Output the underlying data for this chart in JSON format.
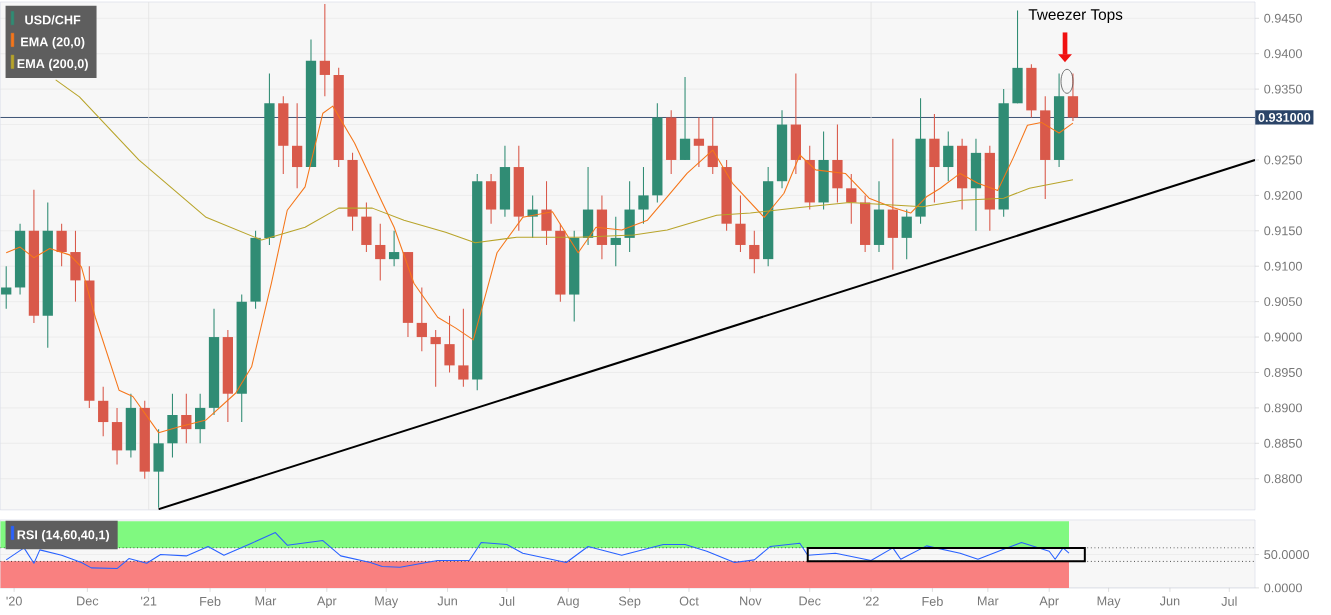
{
  "chart_data": [
    {
      "type": "candlestick",
      "xlim": [
        "2020-10-18",
        "2022-07-14"
      ],
      "ylim": [
        0.8756,
        0.9473
      ],
      "tick_labels": "y",
      "grid": "y",
      "legend": "top left",
      "yticks": [
        {
          "value": 0.88,
          "label": "0.8800"
        },
        {
          "value": 0.885,
          "label": "0.8850"
        },
        {
          "value": 0.89,
          "label": "0.8900"
        },
        {
          "value": 0.895,
          "label": "0.8950"
        },
        {
          "value": 0.9,
          "label": "0.9000"
        },
        {
          "value": 0.905,
          "label": "0.9050"
        },
        {
          "value": 0.91,
          "label": "0.9100"
        },
        {
          "value": 0.915,
          "label": "0.9150"
        },
        {
          "value": 0.92,
          "label": "0.9200"
        },
        {
          "value": 0.925,
          "label": "0.9250"
        },
        {
          "value": 0.93,
          "label": null
        },
        {
          "value": 0.935,
          "label": "0.9350"
        },
        {
          "value": 0.94,
          "label": "0.9400"
        },
        {
          "value": 0.945,
          "label": "0.9450"
        }
      ],
      "series": [
        {
          "name": "USD/CHF",
          "type": "candlestick",
          "color": "#308c74",
          "x": [
            "2020-10-21",
            "2020-10-28",
            "2020-11-04",
            "2020-11-11",
            "2020-11-18",
            "2020-11-25",
            "2020-12-02",
            "2020-12-09",
            "2020-12-16",
            "2020-12-23",
            "2020-12-30",
            "2021-01-06",
            "2021-01-13",
            "2021-01-20",
            "2021-01-27",
            "2021-02-03",
            "2021-02-10",
            "2021-02-17",
            "2021-02-24",
            "2021-03-03",
            "2021-03-10",
            "2021-03-17",
            "2021-03-24",
            "2021-03-31",
            "2021-04-07",
            "2021-04-14",
            "2021-04-21",
            "2021-04-28",
            "2021-05-05",
            "2021-05-12",
            "2021-05-19",
            "2021-05-26",
            "2021-06-02",
            "2021-06-09",
            "2021-06-16",
            "2021-06-23",
            "2021-06-30",
            "2021-07-07",
            "2021-07-14",
            "2021-07-21",
            "2021-07-28",
            "2021-08-04",
            "2021-08-11",
            "2021-08-18",
            "2021-08-25",
            "2021-09-01",
            "2021-09-08",
            "2021-09-15",
            "2021-09-22",
            "2021-09-29",
            "2021-10-06",
            "2021-10-13",
            "2021-10-20",
            "2021-10-27",
            "2021-11-03",
            "2021-11-10",
            "2021-11-17",
            "2021-11-24",
            "2021-12-01",
            "2021-12-08",
            "2021-12-15",
            "2021-12-22",
            "2021-12-29",
            "2022-01-05",
            "2022-01-12",
            "2022-01-19",
            "2022-01-26",
            "2022-02-02",
            "2022-02-09",
            "2022-02-16",
            "2022-02-23",
            "2022-03-02",
            "2022-03-09",
            "2022-03-16",
            "2022-03-23",
            "2022-03-30",
            "2022-04-06",
            "2022-04-13"
          ],
          "ohlc": [
            [
              0.906,
              0.91,
              0.904,
              0.907
            ],
            [
              0.907,
              0.916,
              0.906,
              0.915
            ],
            [
              0.915,
              0.9208,
              0.902,
              0.903
            ],
            [
              0.903,
              0.919,
              0.8985,
              0.915
            ],
            [
              0.915,
              0.916,
              0.91,
              0.912
            ],
            [
              0.912,
              0.915,
              0.905,
              0.908
            ],
            [
              0.908,
              0.91,
              0.89,
              0.891
            ],
            [
              0.891,
              0.893,
              0.886,
              0.888
            ],
            [
              0.888,
              0.89,
              0.882,
              0.884
            ],
            [
              0.884,
              0.892,
              0.883,
              0.89
            ],
            [
              0.89,
              0.891,
              0.88,
              0.881
            ],
            [
              0.881,
              0.887,
              0.8759,
              0.885
            ],
            [
              0.885,
              0.892,
              0.883,
              0.889
            ],
            [
              0.889,
              0.892,
              0.885,
              0.887
            ],
            [
              0.887,
              0.892,
              0.885,
              0.89
            ],
            [
              0.89,
              0.904,
              0.889,
              0.9
            ],
            [
              0.9,
              0.901,
              0.888,
              0.892
            ],
            [
              0.892,
              0.906,
              0.888,
              0.905
            ],
            [
              0.905,
              0.915,
              0.904,
              0.914
            ],
            [
              0.914,
              0.9372,
              0.913,
              0.933
            ],
            [
              0.933,
              0.934,
              0.923,
              0.927
            ],
            [
              0.927,
              0.933,
              0.921,
              0.924
            ],
            [
              0.924,
              0.942,
              0.924,
              0.939
            ],
            [
              0.939,
              0.947,
              0.934,
              0.937
            ],
            [
              0.937,
              0.938,
              0.924,
              0.925
            ],
            [
              0.925,
              0.926,
              0.915,
              0.917
            ],
            [
              0.917,
              0.919,
              0.912,
              0.913
            ],
            [
              0.913,
              0.916,
              0.908,
              0.911
            ],
            [
              0.911,
              0.915,
              0.91,
              0.912
            ],
            [
              0.912,
              0.912,
              0.9,
              0.902
            ],
            [
              0.902,
              0.907,
              0.898,
              0.9
            ],
            [
              0.9,
              0.901,
              0.893,
              0.899
            ],
            [
              0.899,
              0.903,
              0.895,
              0.896
            ],
            [
              0.896,
              0.904,
              0.893,
              0.894
            ],
            [
              0.894,
              0.923,
              0.8925,
              0.922
            ],
            [
              0.922,
              0.923,
              0.916,
              0.918
            ],
            [
              0.918,
              0.927,
              0.917,
              0.924
            ],
            [
              0.924,
              0.927,
              0.915,
              0.917
            ],
            [
              0.917,
              0.92,
              0.914,
              0.918
            ],
            [
              0.918,
              0.922,
              0.913,
              0.915
            ],
            [
              0.915,
              0.916,
              0.905,
              0.906
            ],
            [
              0.906,
              0.915,
              0.9022,
              0.914
            ],
            [
              0.914,
              0.924,
              0.913,
              0.918
            ],
            [
              0.918,
              0.92,
              0.911,
              0.913
            ],
            [
              0.913,
              0.917,
              0.91,
              0.914
            ],
            [
              0.914,
              0.922,
              0.912,
              0.918
            ],
            [
              0.918,
              0.924,
              0.916,
              0.92
            ],
            [
              0.92,
              0.933,
              0.919,
              0.931
            ],
            [
              0.931,
              0.932,
              0.923,
              0.925
            ],
            [
              0.925,
              0.9367,
              0.925,
              0.928
            ],
            [
              0.928,
              0.931,
              0.924,
              0.927
            ],
            [
              0.927,
              0.931,
              0.923,
              0.924
            ],
            [
              0.924,
              0.925,
              0.915,
              0.916
            ],
            [
              0.916,
              0.92,
              0.912,
              0.913
            ],
            [
              0.913,
              0.915,
              0.909,
              0.911
            ],
            [
              0.911,
              0.924,
              0.91,
              0.922
            ],
            [
              0.922,
              0.932,
              0.921,
              0.93
            ],
            [
              0.93,
              0.9372,
              0.923,
              0.925
            ],
            [
              0.925,
              0.927,
              0.918,
              0.919
            ],
            [
              0.919,
              0.929,
              0.918,
              0.925
            ],
            [
              0.925,
              0.93,
              0.919,
              0.921
            ],
            [
              0.921,
              0.923,
              0.916,
              0.919
            ],
            [
              0.919,
              0.92,
              0.912,
              0.913
            ],
            [
              0.913,
              0.922,
              0.912,
              0.918
            ],
            [
              0.918,
              0.928,
              0.9095,
              0.914
            ],
            [
              0.914,
              0.918,
              0.911,
              0.917
            ],
            [
              0.917,
              0.9337,
              0.916,
              0.928
            ],
            [
              0.928,
              0.9315,
              0.919,
              0.924
            ],
            [
              0.924,
              0.929,
              0.922,
              0.927
            ],
            [
              0.927,
              0.928,
              0.918,
              0.921
            ],
            [
              0.921,
              0.928,
              0.915,
              0.926
            ],
            [
              0.926,
              0.927,
              0.915,
              0.918
            ],
            [
              0.918,
              0.935,
              0.917,
              0.933
            ],
            [
              0.933,
              0.9461,
              0.933,
              0.938
            ],
            [
              0.938,
              0.9385,
              0.931,
              0.932
            ],
            [
              0.932,
              0.934,
              0.9195,
              0.925
            ],
            [
              0.925,
              0.9372,
              0.924,
              0.934
            ],
            [
              0.934,
              0.9372,
              0.9305,
              0.931
            ]
          ],
          "colors": [
            "#308c74",
            "#308c74",
            "#d9594a",
            "#308c74",
            "#d9594a",
            "#d9594a",
            "#d9594a",
            "#d9594a",
            "#d9594a",
            "#308c74",
            "#d9594a",
            "#308c74",
            "#308c74",
            "#d9594a",
            "#308c74",
            "#308c74",
            "#d9594a",
            "#308c74",
            "#308c74",
            "#308c74",
            "#d9594a",
            "#d9594a",
            "#308c74",
            "#d9594a",
            "#d9594a",
            "#d9594a",
            "#d9594a",
            "#d9594a",
            "#308c74",
            "#d9594a",
            "#d9594a",
            "#d9594a",
            "#d9594a",
            "#d9594a",
            "#308c74",
            "#d9594a",
            "#308c74",
            "#d9594a",
            "#308c74",
            "#d9594a",
            "#d9594a",
            "#308c74",
            "#308c74",
            "#d9594a",
            "#308c74",
            "#308c74",
            "#308c74",
            "#308c74",
            "#d9594a",
            "#308c74",
            "#d9594a",
            "#d9594a",
            "#d9594a",
            "#d9594a",
            "#d9594a",
            "#308c74",
            "#308c74",
            "#d9594a",
            "#d9594a",
            "#308c74",
            "#d9594a",
            "#d9594a",
            "#d9594a",
            "#308c74",
            "#d9594a",
            "#308c74",
            "#308c74",
            "#d9594a",
            "#308c74",
            "#d9594a",
            "#308c74",
            "#d9594a",
            "#308c74",
            "#308c74",
            "#d9594a",
            "#d9594a",
            "#308c74",
            "#d9594a"
          ]
        },
        {
          "name": "EMA (20,0)",
          "type": "line",
          "color": "#f5761a",
          "x": [
            "2020-10-21",
            "2020-10-28",
            "2020-11-04",
            "2020-11-12",
            "2020-11-22",
            "2020-11-28",
            "2020-12-05",
            "2020-12-17",
            "2020-12-24",
            "2021-01-06",
            "2021-01-16",
            "2021-01-30",
            "2021-02-14",
            "2021-02-22",
            "2021-03-04",
            "2021-03-12",
            "2021-03-21",
            "2021-03-30",
            "2021-04-04",
            "2021-04-15",
            "2021-04-29",
            "2021-05-05",
            "2021-05-15",
            "2021-05-27",
            "2021-06-05",
            "2021-06-14",
            "2021-06-26",
            "2021-07-09",
            "2021-07-24",
            "2021-08-06",
            "2021-08-15",
            "2021-08-28",
            "2021-09-10",
            "2021-09-20",
            "2021-09-30",
            "2021-10-13",
            "2021-10-23",
            "2021-11-08",
            "2021-11-18",
            "2021-11-26",
            "2021-12-04",
            "2021-12-19",
            "2021-12-31",
            "2022-01-12",
            "2022-01-21",
            "2022-01-29",
            "2022-02-05",
            "2022-02-15",
            "2022-02-24",
            "2022-03-06",
            "2022-03-14",
            "2022-03-21",
            "2022-03-28",
            "2022-04-06",
            "2022-04-13"
          ],
          "values": [
            0.9119,
            0.9127,
            0.9112,
            0.9125,
            0.9116,
            0.9099,
            0.9028,
            0.8925,
            0.8916,
            0.8865,
            0.8873,
            0.8883,
            0.8921,
            0.8958,
            0.9076,
            0.9179,
            0.9212,
            0.9316,
            0.9326,
            0.9274,
            0.919,
            0.9155,
            0.9076,
            0.9028,
            0.9013,
            0.8996,
            0.9119,
            0.9169,
            0.9177,
            0.9119,
            0.9155,
            0.9151,
            0.9165,
            0.9198,
            0.9231,
            0.9264,
            0.9217,
            0.9169,
            0.9203,
            0.9257,
            0.9236,
            0.9231,
            0.9196,
            0.9183,
            0.9175,
            0.9198,
            0.921,
            0.9231,
            0.9217,
            0.9207,
            0.9254,
            0.9299,
            0.9303,
            0.9288,
            0.9302
          ]
        },
        {
          "name": "EMA (200,0)",
          "type": "line",
          "color": "#b8a42a",
          "x": [
            "2020-11-15",
            "2020-11-27",
            "2020-12-27",
            "2021-01-30",
            "2021-02-27",
            "2021-03-21",
            "2021-04-07",
            "2021-04-24",
            "2021-05-10",
            "2021-05-31",
            "2021-06-15",
            "2021-07-06",
            "2021-08-06",
            "2021-09-03",
            "2021-09-20",
            "2021-10-15",
            "2021-11-01",
            "2021-11-26",
            "2021-12-21",
            "2022-01-14",
            "2022-01-27",
            "2022-02-16",
            "2022-03-09",
            "2022-03-22",
            "2022-04-04",
            "2022-04-13"
          ],
          "values": [
            0.9363,
            0.9339,
            0.925,
            0.9169,
            0.9137,
            0.9155,
            0.9182,
            0.9182,
            0.9165,
            0.9148,
            0.9133,
            0.9141,
            0.9141,
            0.9144,
            0.9151,
            0.9172,
            0.9175,
            0.9183,
            0.919,
            0.9186,
            0.9184,
            0.9193,
            0.9196,
            0.921,
            0.9217,
            0.9222
          ]
        },
        {
          "type": "line",
          "color": "#000000",
          "x": [
            "2021-01-06",
            "2022-07-14"
          ],
          "values": [
            0.8757,
            0.925
          ]
        }
      ],
      "ref_lines": [
        {
          "axis": "y",
          "value": 0.931,
          "label": "0.931000",
          "color": "#2b4468"
        },
        {
          "axis": "x",
          "value": "2021-01-01",
          "color": "#e2e2e2"
        },
        {
          "axis": "x",
          "value": "2022-01-01",
          "color": "#e2e2e2"
        }
      ],
      "annotations": [
        "Tweezer Tops"
      ]
    },
    {
      "type": "line",
      "xlim": [
        "2020-10-18",
        "2022-07-14"
      ],
      "ylim": [
        0,
        102
      ],
      "grid": "y",
      "legend": "top left",
      "yticks": [
        {
          "value": 0,
          "label": "0.0000"
        },
        {
          "value": 50,
          "label": "50.0000"
        }
      ],
      "xticks": [
        {
          "value": "2020-10-25",
          "label": "'20"
        },
        {
          "value": "2020-12-01",
          "label": "Dec"
        },
        {
          "value": "2021-01-01",
          "label": "'21"
        },
        {
          "value": "2021-02-01",
          "label": "Feb"
        },
        {
          "value": "2021-03-01",
          "label": "Mar"
        },
        {
          "value": "2021-04-01",
          "label": "Apr"
        },
        {
          "value": "2021-05-01",
          "label": "May"
        },
        {
          "value": "2021-06-01",
          "label": "Jun"
        },
        {
          "value": "2021-07-01",
          "label": "Jul"
        },
        {
          "value": "2021-08-01",
          "label": "Aug"
        },
        {
          "value": "2021-09-01",
          "label": "Sep"
        },
        {
          "value": "2021-10-01",
          "label": "Oct"
        },
        {
          "value": "2021-11-01",
          "label": "Nov"
        },
        {
          "value": "2021-12-01",
          "label": "Dec"
        },
        {
          "value": "2022-01-01",
          "label": "'22"
        },
        {
          "value": "2022-02-01",
          "label": "Feb"
        },
        {
          "value": "2022-03-01",
          "label": "Mar"
        },
        {
          "value": "2022-04-01",
          "label": "Apr"
        },
        {
          "value": "2022-05-01",
          "label": "May"
        },
        {
          "value": "2022-06-01",
          "label": "Jun"
        },
        {
          "value": "2022-07-01",
          "label": "Jul"
        }
      ],
      "series": [
        {
          "name": "RSI (14,60,40,1)",
          "color": "#2962ff",
          "x": [
            "2020-10-21",
            "2020-10-30",
            "2020-11-04",
            "2020-11-07",
            "2020-11-18",
            "2020-11-28",
            "2020-12-03",
            "2020-12-16",
            "2020-12-22",
            "2020-12-31",
            "2021-01-07",
            "2021-01-20",
            "2021-01-31",
            "2021-02-08",
            "2021-02-22",
            "2021-03-06",
            "2021-03-12",
            "2021-03-30",
            "2021-04-08",
            "2021-04-23",
            "2021-04-29",
            "2021-05-08",
            "2021-05-27",
            "2021-06-12",
            "2021-06-18",
            "2021-07-01",
            "2021-07-09",
            "2021-07-31",
            "2021-08-11",
            "2021-08-28",
            "2021-09-18",
            "2021-09-29",
            "2021-10-10",
            "2021-10-24",
            "2021-11-03",
            "2021-11-11",
            "2021-11-26",
            "2021-11-30",
            "2021-12-14",
            "2022-01-01",
            "2022-01-12",
            "2022-01-16",
            "2022-01-29",
            "2022-02-15",
            "2022-02-24",
            "2022-03-09",
            "2022-03-18",
            "2022-04-01",
            "2022-04-04",
            "2022-04-08",
            "2022-04-11"
          ],
          "values": [
            42,
            60,
            37,
            57,
            49,
            38,
            30,
            29,
            44,
            37,
            50,
            48,
            62,
            49,
            67,
            83,
            64,
            71,
            48,
            38,
            32,
            31,
            41,
            41,
            68,
            65,
            52,
            38,
            62,
            49,
            65,
            65,
            55,
            38,
            42,
            62,
            67,
            49,
            52,
            41,
            60,
            43,
            63,
            52,
            43,
            58,
            68,
            55,
            43,
            60,
            52
          ]
        }
      ],
      "bands": [
        {
          "axis": "y",
          "from": 60,
          "to": 100,
          "color": "#80f980"
        },
        {
          "axis": "y",
          "from": 0,
          "to": 40,
          "color": "#f98080"
        }
      ],
      "ref_lines": [
        {
          "axis": "y",
          "value": 60,
          "color": "#000000",
          "line_style": "dotted"
        },
        {
          "axis": "y",
          "value": 40,
          "color": "#000000",
          "line_style": "dotted"
        }
      ]
    }
  ]
}
